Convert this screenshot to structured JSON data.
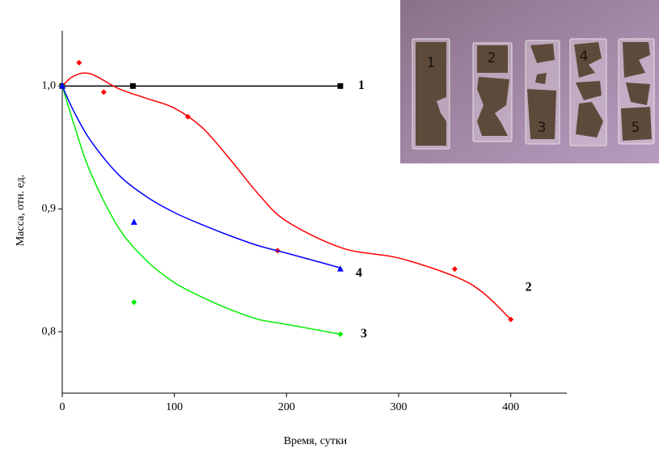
{
  "chart_data": {
    "type": "scatter",
    "x_label": "Время, сутки",
    "y_label": "Масса, отн. ед.",
    "xlim": [
      0,
      450
    ],
    "ylim": [
      0.75,
      1.045
    ],
    "xticks": [
      0,
      100,
      200,
      300,
      400
    ],
    "yticks": [
      {
        "value": 0.8,
        "label": "0,8"
      },
      {
        "value": 0.9,
        "label": "0,9"
      },
      {
        "value": 1.0,
        "label": "1,0"
      }
    ],
    "series": [
      {
        "name": "1",
        "color": "#000000",
        "marker": "square",
        "x": [
          0,
          63,
          248
        ],
        "values": [
          1.0,
          1.0,
          1.0
        ],
        "trend_x": [
          0,
          248
        ],
        "trend_values": [
          1.0,
          1.0
        ]
      },
      {
        "name": "2",
        "color": "#ff0000",
        "marker": "diamond",
        "x": [
          0,
          15,
          37,
          112,
          192,
          350,
          400
        ],
        "values": [
          1.0,
          1.019,
          0.995,
          0.975,
          0.866,
          0.851,
          0.81
        ],
        "trend_x": [
          0,
          10,
          25,
          50,
          75,
          100,
          125,
          150,
          175,
          200,
          250,
          300,
          350,
          375,
          400
        ],
        "trend_values": [
          1.0,
          1.008,
          1.01,
          0.998,
          0.99,
          0.982,
          0.966,
          0.94,
          0.912,
          0.89,
          0.868,
          0.86,
          0.845,
          0.832,
          0.81
        ]
      },
      {
        "name": "3",
        "color": "#00ee00",
        "marker": "diamond",
        "x": [
          0,
          64,
          248
        ],
        "values": [
          1.0,
          0.824,
          0.798
        ],
        "trend_x": [
          0,
          10,
          25,
          50,
          75,
          100,
          125,
          150,
          175,
          200,
          248
        ],
        "trend_values": [
          1.0,
          0.97,
          0.93,
          0.885,
          0.858,
          0.84,
          0.828,
          0.818,
          0.81,
          0.806,
          0.798
        ]
      },
      {
        "name": "4",
        "color": "#0000ff",
        "marker": "triangle",
        "x": [
          0,
          64,
          248
        ],
        "values": [
          1.0,
          0.889,
          0.851
        ],
        "trend_x": [
          0,
          10,
          25,
          50,
          75,
          100,
          125,
          150,
          175,
          200,
          248
        ],
        "trend_values": [
          1.0,
          0.98,
          0.956,
          0.928,
          0.91,
          0.897,
          0.887,
          0.878,
          0.87,
          0.864,
          0.852
        ]
      }
    ],
    "inset_labels": [
      "1",
      "2",
      "3",
      "4",
      "5"
    ]
  }
}
